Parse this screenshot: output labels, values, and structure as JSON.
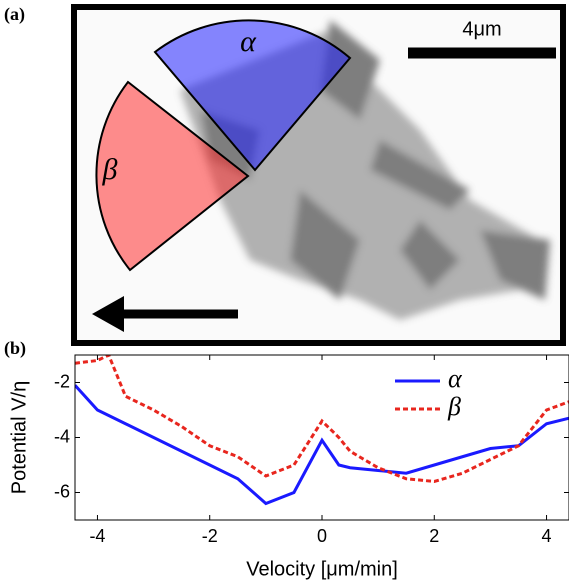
{
  "panel_a": {
    "label": "(a)",
    "scale_bar": "4μm",
    "sector_labels": [
      "α",
      "β"
    ]
  },
  "chart_data": {
    "type": "line",
    "panel_label": "(b)",
    "x_label": "Velocity [μm/min]",
    "y_label": "Potential V/η",
    "x": [
      -4.4,
      -4,
      -3.8,
      -3.5,
      -3,
      -2.5,
      -2,
      -1.5,
      -1,
      -0.5,
      0,
      0.3,
      0.5,
      1,
      1.5,
      2,
      2.5,
      3,
      3.5,
      4,
      4.4
    ],
    "series": [
      {
        "name": "α",
        "color": "#1a1aff",
        "dash": false,
        "values": [
          -2.1,
          -3.0,
          -3.2,
          -3.5,
          -4.0,
          -4.5,
          -5.0,
          -5.5,
          -6.4,
          -6.0,
          -4.1,
          -5.0,
          -5.1,
          -5.2,
          -5.3,
          -5.0,
          -4.7,
          -4.4,
          -4.3,
          -3.5,
          -3.3
        ]
      },
      {
        "name": "β",
        "color": "#e8261e",
        "dash": true,
        "values": [
          -1.3,
          -1.2,
          -1.0,
          -2.5,
          -3.0,
          -3.6,
          -4.3,
          -4.7,
          -5.4,
          -5.0,
          -3.4,
          -4.0,
          -4.5,
          -5.1,
          -5.5,
          -5.6,
          -5.3,
          -4.8,
          -4.3,
          -3.0,
          -2.7
        ]
      }
    ],
    "xlim": [
      -4.4,
      4.4
    ],
    "ylim": [
      -7,
      -1
    ],
    "xticks": [
      -4,
      -2,
      0,
      2,
      4
    ],
    "yticks": [
      -6,
      -4,
      -2
    ],
    "legend": "upper right"
  }
}
